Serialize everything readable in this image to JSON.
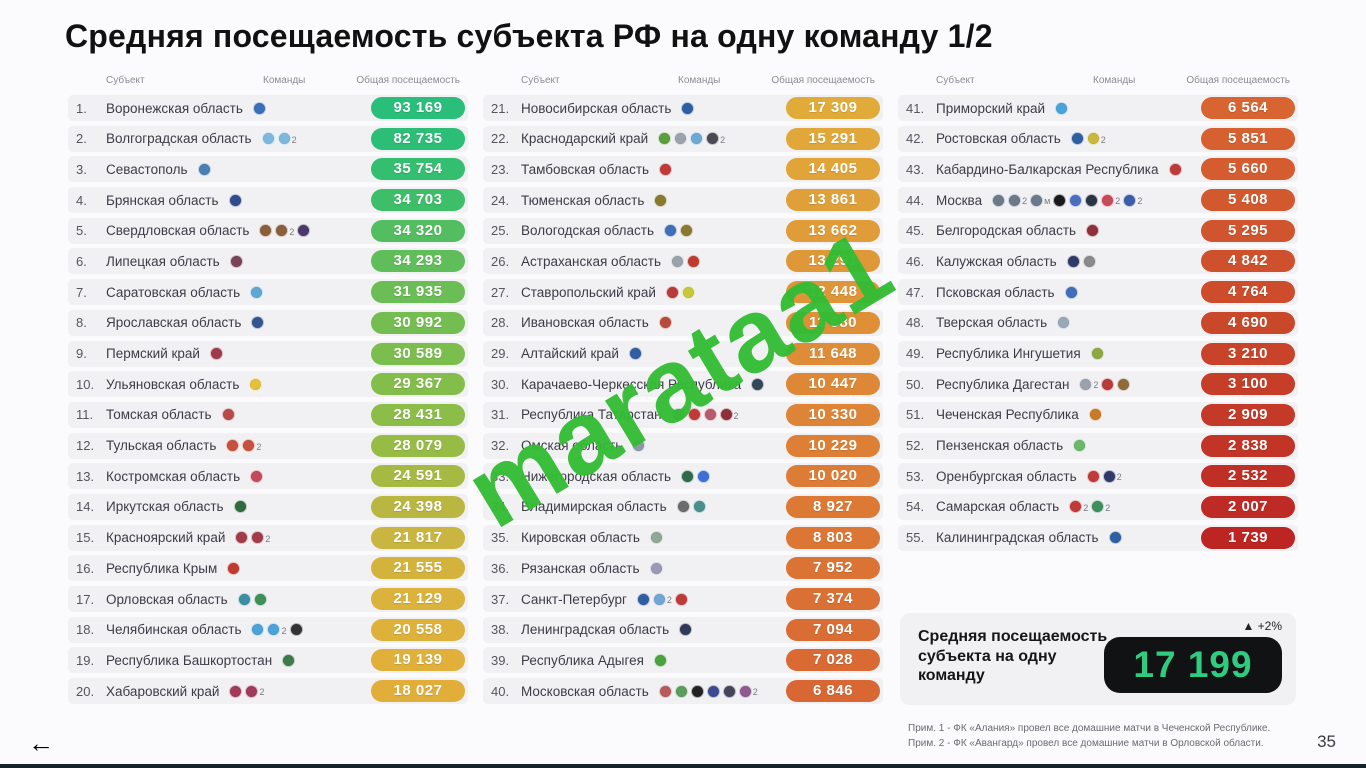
{
  "title": "Средняя посещаемость субъекта РФ на одну команду 1/2",
  "page_number": "35",
  "back_arrow": "←",
  "watermark": {
    "text": "marataa1",
    "color": "#33BC34"
  },
  "columns_header": {
    "subject": "Субъект",
    "teams": "Команды",
    "attendance": "Общая посещаемость"
  },
  "summary": {
    "label": "Средняя посещаемость субъекта на одну команду",
    "change": "▲ +2%",
    "value": "17 199",
    "value_color": "#2ECC7F",
    "box_color": "#101214"
  },
  "footnotes": [
    "Прим. 1 - ФК «Алания» провел все домашние матчи в Чеченской Республике.",
    "Прим. 2 - ФК «Авангард» провел все домашние матчи в Орловской области."
  ],
  "rows": [
    {
      "n": "1.",
      "name": "Воронежская область",
      "value": "93 169",
      "color": "#29BE7A",
      "badges": [
        {
          "c": "#3A6FB8"
        }
      ]
    },
    {
      "n": "2.",
      "name": "Волгоградская область",
      "value": "82 735",
      "color": "#2CBE76",
      "badges": [
        {
          "c": "#7FB8DF"
        },
        {
          "c": "#7FB8DF",
          "sup": "2"
        }
      ]
    },
    {
      "n": "3.",
      "name": "Севастополь",
      "value": "35 754",
      "color": "#33BE70",
      "badges": [
        {
          "c": "#4A7FB5"
        }
      ]
    },
    {
      "n": "4.",
      "name": "Брянская область",
      "value": "34 703",
      "color": "#3EBE69",
      "badges": [
        {
          "c": "#2F4C8F"
        }
      ]
    },
    {
      "n": "5.",
      "name": "Свердловская область",
      "value": "34 320",
      "color": "#52BE60",
      "badges": [
        {
          "c": "#8B5E3C"
        },
        {
          "c": "#8B5E3C",
          "sup": "2"
        },
        {
          "c": "#4A3A6B"
        }
      ]
    },
    {
      "n": "6.",
      "name": "Липецкая область",
      "value": "34 293",
      "color": "#60BE5A",
      "badges": [
        {
          "c": "#7A4455"
        }
      ]
    },
    {
      "n": "7.",
      "name": "Саратовская область",
      "value": "31 935",
      "color": "#6BBE55",
      "badges": [
        {
          "c": "#5FA8D3"
        }
      ]
    },
    {
      "n": "8.",
      "name": "Ярославская область",
      "value": "30 992",
      "color": "#74BE51",
      "badges": [
        {
          "c": "#35548F"
        }
      ]
    },
    {
      "n": "9.",
      "name": "Пермский край",
      "value": "30 589",
      "color": "#7CBE4E",
      "badges": [
        {
          "c": "#A03A4A"
        }
      ]
    },
    {
      "n": "10.",
      "name": "Ульяновская область",
      "value": "29 367",
      "color": "#83BE4B",
      "badges": [
        {
          "c": "#E3C23A"
        }
      ]
    },
    {
      "n": "11.",
      "name": "Томская область",
      "value": "28 431",
      "color": "#8BBD48",
      "badges": [
        {
          "c": "#B84A4A"
        }
      ]
    },
    {
      "n": "12.",
      "name": "Тульская область",
      "value": "28 079",
      "color": "#97BC45",
      "badges": [
        {
          "c": "#C8503C"
        },
        {
          "c": "#C8503C",
          "sup": "2"
        }
      ]
    },
    {
      "n": "13.",
      "name": "Костромская область",
      "value": "24 591",
      "color": "#A6BA43",
      "badges": [
        {
          "c": "#C44A5A"
        }
      ]
    },
    {
      "n": "14.",
      "name": "Иркутская область",
      "value": "24 398",
      "color": "#B9B741",
      "badges": [
        {
          "c": "#2F6B3C"
        }
      ]
    },
    {
      "n": "15.",
      "name": "Красноярский край",
      "value": "21 817",
      "color": "#C9B53F",
      "badges": [
        {
          "c": "#A33A4A"
        },
        {
          "c": "#A33A4A",
          "sup": "2"
        }
      ]
    },
    {
      "n": "16.",
      "name": "Республика Крым",
      "value": "21 555",
      "color": "#D4B33D",
      "badges": [
        {
          "c": "#C03A30"
        }
      ]
    },
    {
      "n": "17.",
      "name": "Орловская область",
      "value": "21 129",
      "color": "#DAB23C",
      "badges": [
        {
          "c": "#3A8FA3"
        },
        {
          "c": "#3E8F5A"
        }
      ]
    },
    {
      "n": "18.",
      "name": "Челябинская область",
      "value": "20 558",
      "color": "#DEB13B",
      "badges": [
        {
          "c": "#4AA3D9"
        },
        {
          "c": "#4AA3D9",
          "sup": "2"
        },
        {
          "c": "#333333"
        }
      ]
    },
    {
      "n": "19.",
      "name": "Республика Башкортостан",
      "value": "19 139",
      "color": "#E0B03B",
      "badges": [
        {
          "c": "#3E7A4A"
        }
      ]
    },
    {
      "n": "20.",
      "name": "Хабаровский край",
      "value": "18 027",
      "color": "#E1AE3A",
      "badges": [
        {
          "c": "#A33A5A"
        },
        {
          "c": "#A33A5A",
          "sup": "2"
        }
      ]
    },
    {
      "n": "21.",
      "name": "Новосибирская область",
      "value": "17 309",
      "color": "#E1AB3A",
      "badges": [
        {
          "c": "#2F5FA3"
        }
      ]
    },
    {
      "n": "22.",
      "name": "Краснодарский край",
      "value": "15 291",
      "color": "#E1A839",
      "badges": [
        {
          "c": "#5A9E3E"
        },
        {
          "c": "#9AA3AD"
        },
        {
          "c": "#6FA8D3"
        },
        {
          "c": "#4A4A55",
          "sup": "2"
        }
      ]
    },
    {
      "n": "23.",
      "name": "Тамбовская область",
      "value": "14 405",
      "color": "#E0A439",
      "badges": [
        {
          "c": "#C03A3A"
        }
      ]
    },
    {
      "n": "24.",
      "name": "Тюменская область",
      "value": "13 861",
      "color": "#E0A039",
      "badges": [
        {
          "c": "#8A7A2F"
        }
      ]
    },
    {
      "n": "25.",
      "name": "Вологодская область",
      "value": "13 662",
      "color": "#E09C38",
      "badges": [
        {
          "c": "#3E6FB8"
        },
        {
          "c": "#8A7A2F"
        }
      ]
    },
    {
      "n": "26.",
      "name": "Астраханская область",
      "value": "13 291",
      "color": "#DF9838",
      "badges": [
        {
          "c": "#9AA3AD"
        },
        {
          "c": "#C03A30"
        }
      ]
    },
    {
      "n": "27.",
      "name": "Ставропольский край",
      "value": "12 448",
      "color": "#DF9438",
      "badges": [
        {
          "c": "#B83A3A"
        },
        {
          "c": "#C8C83E"
        }
      ]
    },
    {
      "n": "28.",
      "name": "Ивановская область",
      "value": "11 980",
      "color": "#DF9037",
      "badges": [
        {
          "c": "#B84A3A"
        }
      ]
    },
    {
      "n": "29.",
      "name": "Алтайский край",
      "value": "11 648",
      "color": "#DE8C37",
      "badges": [
        {
          "c": "#2F5FA3"
        }
      ]
    },
    {
      "n": "30.",
      "name": "Карачаево-Черкесская Республика",
      "value": "10 447",
      "color": "#DE8837",
      "badges": [
        {
          "c": "#33475A"
        }
      ]
    },
    {
      "n": "31.",
      "name": "Республика Татарстан",
      "value": "10 330",
      "color": "#DE8436",
      "badges": [
        {
          "c": "#6B8F9E"
        },
        {
          "c": "#C03A3A"
        },
        {
          "c": "#B85A6B"
        },
        {
          "c": "#8F2F3A",
          "sup": "2"
        }
      ]
    },
    {
      "n": "32.",
      "name": "Омская область",
      "value": "10 229",
      "color": "#DD8036",
      "badges": [
        {
          "c": "#8A9AA8"
        }
      ]
    },
    {
      "n": "33.",
      "name": "Нижегородская область",
      "value": "10 020",
      "color": "#DD7C36",
      "badges": [
        {
          "c": "#2F6B4A"
        },
        {
          "c": "#3E6FD9"
        }
      ]
    },
    {
      "n": "34.",
      "name": "Владимирская область",
      "value": "8 927",
      "color": "#DC7935",
      "badges": [
        {
          "c": "#6B6B6B"
        },
        {
          "c": "#4A8F8F"
        }
      ]
    },
    {
      "n": "35.",
      "name": "Кировская область",
      "value": "8 803",
      "color": "#DC7635",
      "badges": [
        {
          "c": "#8FA89A"
        }
      ]
    },
    {
      "n": "36.",
      "name": "Рязанская область",
      "value": "7 952",
      "color": "#DB7334",
      "badges": [
        {
          "c": "#9A9AB8"
        }
      ]
    },
    {
      "n": "37.",
      "name": "Санкт-Петербург",
      "value": "7 374",
      "color": "#DB7034",
      "badges": [
        {
          "c": "#2F5FA3"
        },
        {
          "c": "#6FA8D3",
          "sup": "2"
        },
        {
          "c": "#C03A3A"
        }
      ]
    },
    {
      "n": "38.",
      "name": "Ленинградская область",
      "value": "7 094",
      "color": "#DA6D34",
      "badges": [
        {
          "c": "#2F3A5A"
        }
      ]
    },
    {
      "n": "39.",
      "name": "Республика Адыгея",
      "value": "7 028",
      "color": "#DA6A33",
      "badges": [
        {
          "c": "#4AA33E"
        }
      ]
    },
    {
      "n": "40.",
      "name": "Московская область",
      "value": "6 846",
      "color": "#D96733",
      "badges": [
        {
          "c": "#B85A5A"
        },
        {
          "c": "#5A9E5A"
        },
        {
          "c": "#222222"
        },
        {
          "c": "#3E4A8F"
        },
        {
          "c": "#44445A"
        },
        {
          "c": "#8F5A8F",
          "sup": "2"
        }
      ]
    },
    {
      "n": "41.",
      "name": "Приморский край",
      "value": "6 564",
      "color": "#D86432",
      "badges": [
        {
          "c": "#4AA3D9"
        }
      ]
    },
    {
      "n": "42.",
      "name": "Ростовская область",
      "value": "5 851",
      "color": "#D66030",
      "badges": [
        {
          "c": "#2F5FA3"
        },
        {
          "c": "#C8B83E",
          "sup": "2"
        }
      ]
    },
    {
      "n": "43.",
      "name": "Кабардино-Балкарская Республика",
      "value": "5 660",
      "color": "#D45C2F",
      "badges": [
        {
          "c": "#C03A3A"
        }
      ]
    },
    {
      "n": "44.",
      "name": "Москва",
      "value": "5 408",
      "color": "#D2582E",
      "badges": [
        {
          "c": "#6B7A8A"
        },
        {
          "c": "#6B7A8A",
          "sup": "2"
        },
        {
          "c": "#6B7A8A",
          "sup": "м"
        },
        {
          "c": "#1A1A1A"
        },
        {
          "c": "#4A6FC0"
        },
        {
          "c": "#2A3444"
        },
        {
          "c": "#C84A5A",
          "sup": "2"
        },
        {
          "c": "#3A5FA8",
          "sup": "2"
        }
      ]
    },
    {
      "n": "45.",
      "name": "Белгородская область",
      "value": "5 295",
      "color": "#D0542D",
      "badges": [
        {
          "c": "#8F2F3A"
        }
      ]
    },
    {
      "n": "46.",
      "name": "Калужская область",
      "value": "4 842",
      "color": "#CE502C",
      "badges": [
        {
          "c": "#2F3A6B"
        },
        {
          "c": "#8A8A8A"
        }
      ]
    },
    {
      "n": "47.",
      "name": "Псковская область",
      "value": "4 764",
      "color": "#CC4C2B",
      "badges": [
        {
          "c": "#3E6FB8"
        }
      ]
    },
    {
      "n": "48.",
      "name": "Тверская область",
      "value": "4 690",
      "color": "#CA482A",
      "badges": [
        {
          "c": "#9AA8B8"
        }
      ]
    },
    {
      "n": "49.",
      "name": "Республика Ингушетия",
      "value": "3 210",
      "color": "#C84329",
      "badges": [
        {
          "c": "#8FA83E"
        }
      ]
    },
    {
      "n": "50.",
      "name": "Республика Дагестан",
      "value": "3 100",
      "color": "#C63E28",
      "badges": [
        {
          "c": "#9AA3AD",
          "sup": "2"
        },
        {
          "c": "#B83A3A"
        },
        {
          "c": "#8F6B3A"
        }
      ]
    },
    {
      "n": "51.",
      "name": "Чеченская Республика",
      "value": "2 909",
      "color": "#C43927",
      "badges": [
        {
          "c": "#C87A28"
        }
      ]
    },
    {
      "n": "52.",
      "name": "Пензенская область",
      "value": "2 838",
      "color": "#C23426",
      "badges": [
        {
          "c": "#6BB86B"
        }
      ]
    },
    {
      "n": "53.",
      "name": "Оренбургская область",
      "value": "2 532",
      "color": "#C02F25",
      "badges": [
        {
          "c": "#C03A3A"
        },
        {
          "c": "#2F3A6B",
          "sup": "2"
        }
      ]
    },
    {
      "n": "54.",
      "name": "Самарская область",
      "value": "2 007",
      "color": "#BE2A24",
      "badges": [
        {
          "c": "#C03A3A",
          "sup": "2"
        },
        {
          "c": "#3E8F5A",
          "sup": "2"
        }
      ]
    },
    {
      "n": "55.",
      "name": "Калининградская область",
      "value": "1 739",
      "color": "#BC2522",
      "badges": [
        {
          "c": "#2F5FA3"
        }
      ]
    }
  ]
}
